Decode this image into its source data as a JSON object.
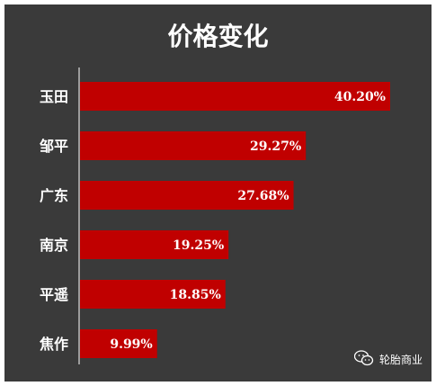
{
  "chart_data": {
    "type": "bar",
    "orientation": "horizontal",
    "title": "价格变化",
    "categories": [
      "玉田",
      "邹平",
      "广东",
      "南京",
      "平遥",
      "焦作"
    ],
    "values": [
      40.2,
      29.27,
      27.68,
      19.25,
      18.85,
      9.99
    ],
    "labels": [
      "40.20%",
      "29.27%",
      "27.68%",
      "19.25%",
      "18.85%",
      "9.99%"
    ],
    "unit": "%",
    "xlim": [
      0,
      40.2
    ],
    "grid": false,
    "colors": {
      "bar": "#c00000",
      "background": "#3a3a3a",
      "text": "#ffffff"
    }
  },
  "watermark": {
    "text": "轮胎商业",
    "icon": "wechat-icon"
  }
}
